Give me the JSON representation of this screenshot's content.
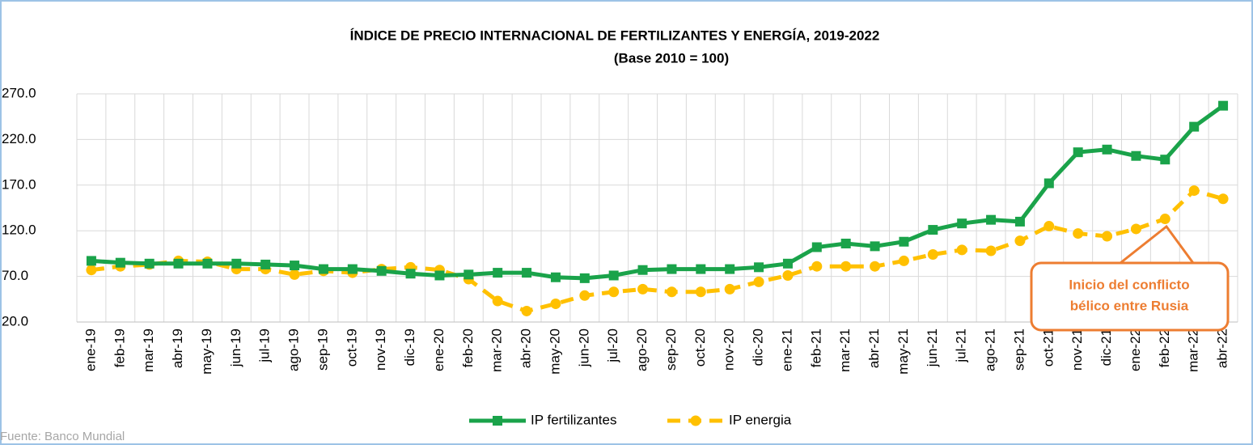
{
  "chart_data": {
    "type": "line",
    "title": "ÍNDICE DE PRECIO INTERNACIONAL DE FERTILIZANTES Y ENERGÍA, 2019-2022",
    "subtitle": "(Base 2010 = 100)",
    "categories": [
      "ene-19",
      "feb-19",
      "mar-19",
      "abr-19",
      "may-19",
      "jun-19",
      "jul-19",
      "ago-19",
      "sep-19",
      "oct-19",
      "nov-19",
      "dic-19",
      "ene-20",
      "feb-20",
      "mar-20",
      "abr-20",
      "may-20",
      "jun-20",
      "jul-20",
      "ago-20",
      "sep-20",
      "oct-20",
      "nov-20",
      "dic-20",
      "ene-21",
      "feb-21",
      "mar-21",
      "abr-21",
      "may-21",
      "jun-21",
      "jul-21",
      "ago-21",
      "sep-21",
      "oct-21",
      "nov-21",
      "dic-21",
      "ene-22",
      "feb-22",
      "mar-22",
      "abr-22"
    ],
    "series": [
      {
        "name": "IP fertilizantes",
        "color": "#1aa34a",
        "marker": "square",
        "dash": false,
        "values": [
          87,
          85,
          84,
          84,
          84,
          84,
          83,
          82,
          78,
          78,
          76,
          73,
          71,
          72,
          74,
          74,
          69,
          68,
          71,
          77,
          78,
          78,
          78,
          80,
          84,
          102,
          106,
          103,
          108,
          121,
          128,
          132,
          130,
          172,
          206,
          209,
          202,
          198,
          234,
          257
        ]
      },
      {
        "name": "IP energia",
        "color": "#ffc000",
        "marker": "circle",
        "dash": true,
        "values": [
          77,
          81,
          83,
          87,
          86,
          78,
          78,
          72,
          76,
          74,
          78,
          80,
          77,
          67,
          43,
          32,
          40,
          49,
          53,
          56,
          53,
          53,
          56,
          64,
          71,
          81,
          81,
          81,
          87,
          94,
          99,
          98,
          109,
          125,
          117,
          114,
          122,
          133,
          164,
          155
        ]
      }
    ],
    "ylim": [
      20,
      270
    ],
    "yticks": [
      {
        "value": 20,
        "label": "20.0"
      },
      {
        "value": 70,
        "label": "70.0"
      },
      {
        "value": 120,
        "label": "120.0"
      },
      {
        "value": 170,
        "label": "170.0"
      },
      {
        "value": 220,
        "label": "220.0"
      },
      {
        "value": 270,
        "label": "270.0"
      }
    ],
    "grid": true,
    "legend": "bottom",
    "annotation": {
      "lines": [
        "Inicio del conflicto",
        "bélico entre Rusia"
      ],
      "color": "#ed7d31"
    },
    "source": "Fuente: Banco Mundial"
  }
}
